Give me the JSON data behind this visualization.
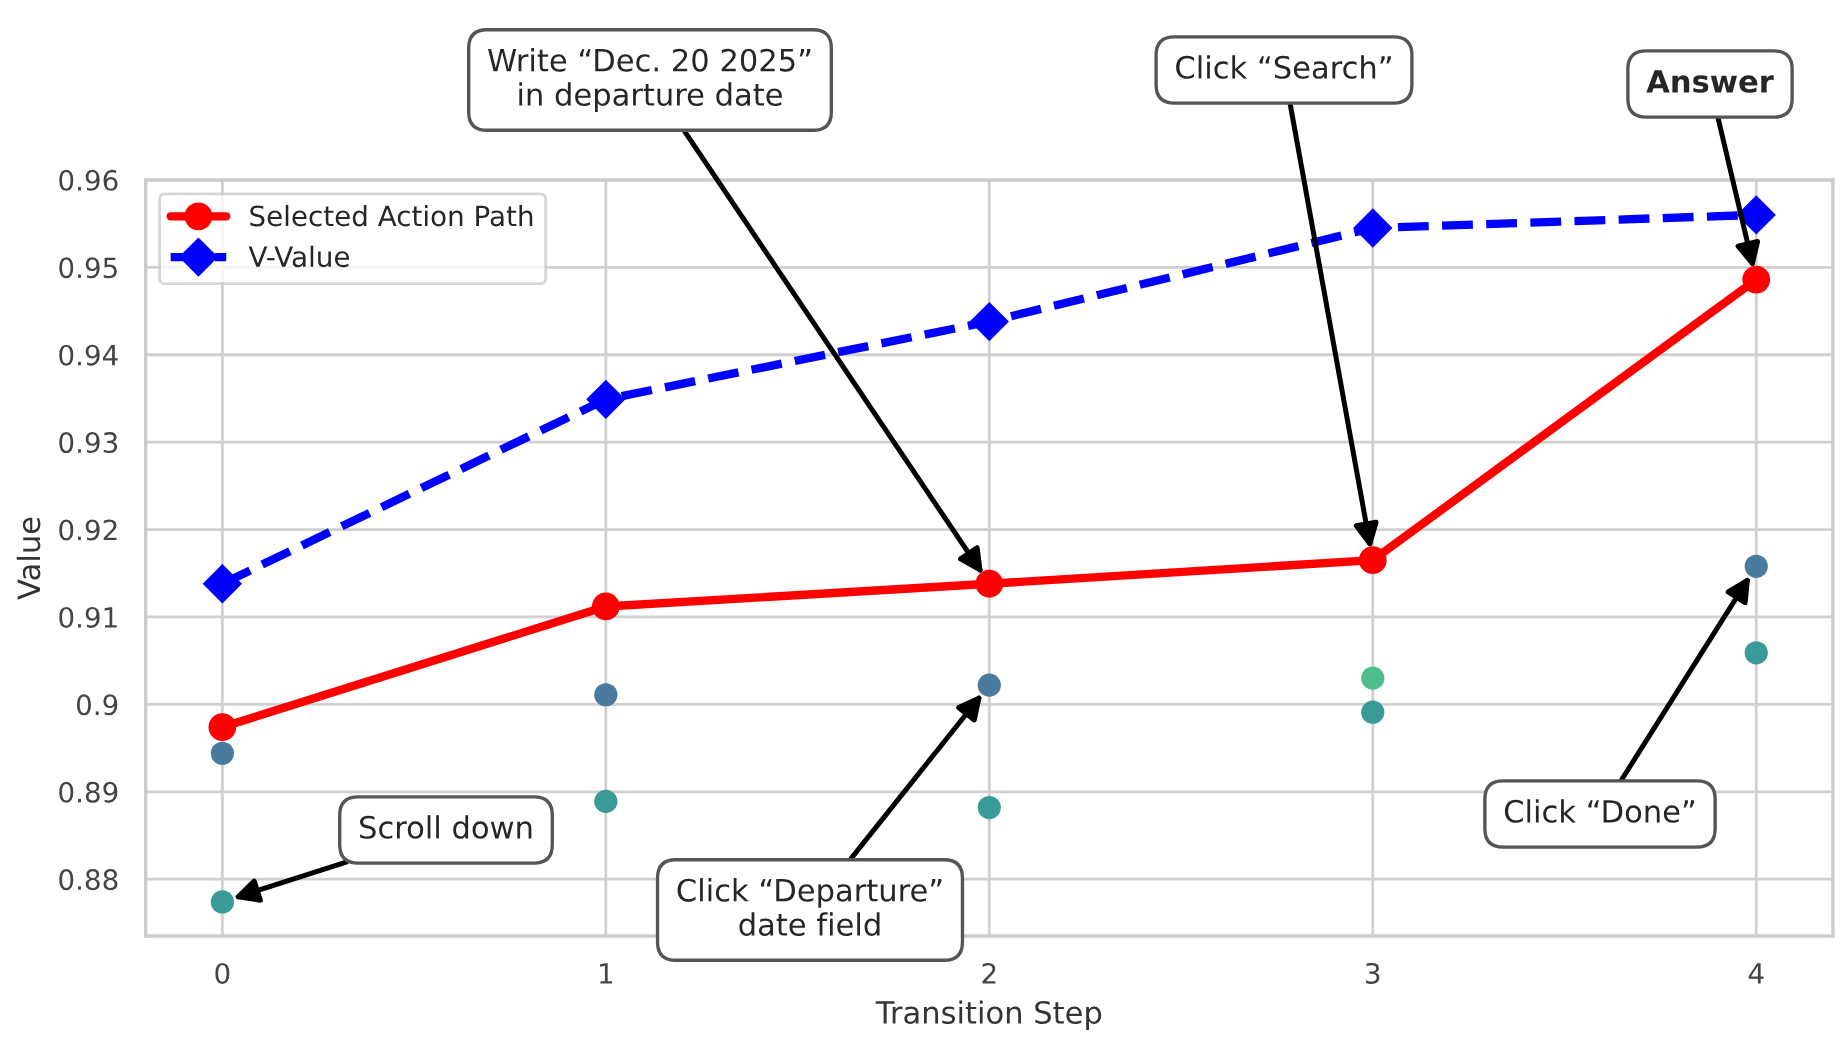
{
  "chart_data": {
    "type": "line",
    "xlabel": "Transition Step",
    "ylabel": "Value",
    "xlim": [
      -0.2,
      4.2
    ],
    "xticks": [
      0,
      1,
      2,
      3,
      4
    ],
    "ylim": [
      0.8735,
      0.96
    ],
    "yticks": [
      0.88,
      0.89,
      0.9,
      0.91,
      0.92,
      0.93,
      0.94,
      0.95,
      0.96
    ],
    "grid": true,
    "legend": "top left",
    "series": [
      {
        "type": "scatter",
        "x": [
          0,
          0,
          1,
          1,
          2,
          2,
          3,
          3,
          4,
          4
        ],
        "values": [
          0.8944,
          0.8774,
          0.9011,
          0.8889,
          0.9022,
          0.8882,
          0.903,
          0.8991,
          0.9158,
          0.9059
        ],
        "colors": [
          "#4a7a9c",
          "#3a9a96",
          "#4a7a9c",
          "#3a9a96",
          "#4a7a9c",
          "#3a9a96",
          "#4cbf8c",
          "#3a9a96",
          "#4a7a9c",
          "#3a9a96"
        ],
        "marker": "circle"
      },
      {
        "name": "Selected Action Path",
        "color": "#ff0000",
        "x": [
          0,
          1,
          2,
          3,
          4
        ],
        "values": [
          0.8974,
          0.9112,
          0.9138,
          0.9165,
          0.9486
        ],
        "marker": "circle",
        "line_style": "solid"
      },
      {
        "name": "V-Value",
        "color": "#0000ff",
        "x": [
          0,
          1,
          2,
          3,
          4
        ],
        "values": [
          0.9138,
          0.9349,
          0.9438,
          0.9545,
          0.956
        ],
        "marker": "diamond",
        "line_style": "dashed"
      }
    ],
    "annotations": [
      {
        "text": "Write “Dec. 20 2025”\nin departure date",
        "x": 2,
        "y": 0.9138
      },
      {
        "text": "Click “Search”",
        "x": 3,
        "y": 0.9165
      },
      {
        "text": "Answer",
        "x": 4,
        "y": 0.9486
      },
      {
        "text": "Scroll down",
        "x": 0,
        "y": 0.8774
      },
      {
        "text": "Click “Departure”\ndate field",
        "x": 2,
        "y": 0.9022
      },
      {
        "text": "Click “Done”",
        "x": 4,
        "y": 0.9158
      }
    ]
  }
}
